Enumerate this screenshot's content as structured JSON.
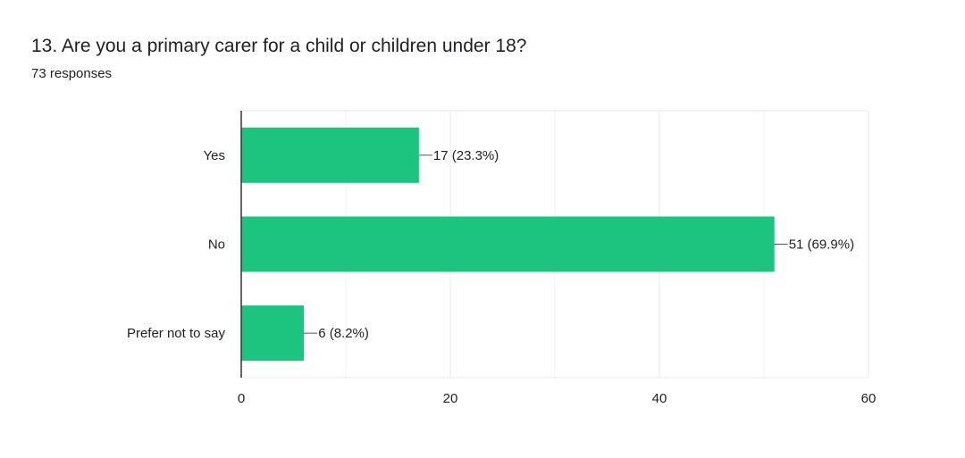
{
  "question": {
    "title": "13. Are you a primary carer for a child or children under 18?",
    "responses": "73 responses"
  },
  "colors": {
    "bar": "#1dc47f",
    "grid": "#e8e8e8",
    "axis": "#333333"
  },
  "chart_data": {
    "type": "bar",
    "orientation": "horizontal",
    "title": "",
    "xlabel": "",
    "ylabel": "",
    "categories": [
      "Yes",
      "No",
      "Prefer not to say"
    ],
    "values": [
      17,
      51,
      6
    ],
    "labels": [
      "17 (23.3%)",
      "51 (69.9%)",
      "6 (8.2%)"
    ],
    "xlim": [
      0,
      60
    ],
    "xticks": [
      0,
      20,
      40,
      60
    ],
    "minor_gridlines": [
      10,
      30,
      50
    ],
    "grid": true,
    "legend": "none"
  }
}
